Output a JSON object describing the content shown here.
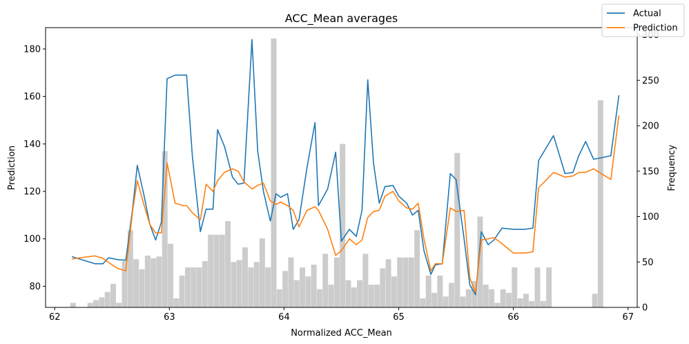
{
  "chart_data": {
    "type": "line",
    "title": "ACC_Mean averages",
    "xlabel": "Normalized ACC_Mean",
    "ylabel": "Prediction",
    "y2label": "Frequency",
    "xlim": [
      61.92,
      67.08
    ],
    "ylim": [
      71.1,
      189
    ],
    "y2lim": [
      0,
      308
    ],
    "x_ticks": [
      "62",
      "63",
      "64",
      "65",
      "66",
      "67"
    ],
    "x_tick_values": [
      62,
      63,
      64,
      65,
      66,
      67
    ],
    "y_ticks": [
      "80",
      "100",
      "120",
      "140",
      "160",
      "180"
    ],
    "y_tick_values": [
      80,
      100,
      120,
      140,
      160,
      180
    ],
    "y2_ticks": [
      "0",
      "50",
      "100",
      "150",
      "200",
      "250",
      "300"
    ],
    "y2_tick_values": [
      0,
      50,
      100,
      150,
      200,
      250,
      300
    ],
    "legend_position": "top-right",
    "grid": false,
    "series": [
      {
        "name": "Actual",
        "color": "#1f77b4",
        "points": [
          [
            62.15,
            92.5
          ],
          [
            62.25,
            91
          ],
          [
            62.35,
            89.5
          ],
          [
            62.42,
            89.5
          ],
          [
            62.47,
            92
          ],
          [
            62.55,
            91.2
          ],
          [
            62.62,
            91
          ],
          [
            62.68,
            113
          ],
          [
            62.72,
            131
          ],
          [
            62.78,
            118
          ],
          [
            62.83,
            106
          ],
          [
            62.88,
            99.5
          ],
          [
            62.93,
            107
          ],
          [
            62.98,
            167.5
          ],
          [
            63.05,
            169
          ],
          [
            63.12,
            169
          ],
          [
            63.15,
            169
          ],
          [
            63.2,
            135
          ],
          [
            63.27,
            103
          ],
          [
            63.32,
            112.5
          ],
          [
            63.38,
            112.5
          ],
          [
            63.42,
            146
          ],
          [
            63.48,
            139
          ],
          [
            63.55,
            126
          ],
          [
            63.6,
            123
          ],
          [
            63.65,
            123.5
          ],
          [
            63.72,
            184
          ],
          [
            63.77,
            137
          ],
          [
            63.82,
            120
          ],
          [
            63.88,
            107.5
          ],
          [
            63.93,
            119
          ],
          [
            63.97,
            117.5
          ],
          [
            64.03,
            119
          ],
          [
            64.08,
            104
          ],
          [
            64.13,
            108
          ],
          [
            64.2,
            130
          ],
          [
            64.27,
            149
          ],
          [
            64.3,
            114
          ],
          [
            64.38,
            121
          ],
          [
            64.45,
            136.5
          ],
          [
            64.5,
            99
          ],
          [
            64.57,
            104
          ],
          [
            64.63,
            101
          ],
          [
            64.68,
            112
          ],
          [
            64.73,
            167
          ],
          [
            64.78,
            132
          ],
          [
            64.83,
            115
          ],
          [
            64.88,
            122
          ],
          [
            64.95,
            122.5
          ],
          [
            65,
            118
          ],
          [
            65.07,
            115
          ],
          [
            65.12,
            110
          ],
          [
            65.17,
            112
          ],
          [
            65.22,
            95
          ],
          [
            65.28,
            85
          ],
          [
            65.32,
            89
          ],
          [
            65.38,
            89.5
          ],
          [
            65.45,
            127.5
          ],
          [
            65.5,
            125
          ],
          [
            65.57,
            100
          ],
          [
            65.62,
            80.5
          ],
          [
            65.67,
            76.5
          ],
          [
            65.72,
            103
          ],
          [
            65.78,
            97.5
          ],
          [
            65.83,
            99.5
          ],
          [
            65.9,
            104.5
          ],
          [
            66,
            104
          ],
          [
            66.1,
            104
          ],
          [
            66.17,
            104.5
          ],
          [
            66.22,
            133
          ],
          [
            66.35,
            143.5
          ],
          [
            66.45,
            127.5
          ],
          [
            66.52,
            128
          ],
          [
            66.57,
            135
          ],
          [
            66.63,
            141
          ],
          [
            66.7,
            133.5
          ],
          [
            66.85,
            135
          ],
          [
            66.92,
            160.5
          ]
        ]
      },
      {
        "name": "Prediction",
        "color": "#ff7f0e",
        "points": [
          [
            62.15,
            91.5
          ],
          [
            62.25,
            92.2
          ],
          [
            62.35,
            92.8
          ],
          [
            62.42,
            91.8
          ],
          [
            62.47,
            90
          ],
          [
            62.55,
            87.5
          ],
          [
            62.62,
            86.5
          ],
          [
            62.68,
            112
          ],
          [
            62.72,
            124.5
          ],
          [
            62.78,
            114
          ],
          [
            62.83,
            106
          ],
          [
            62.88,
            102.5
          ],
          [
            62.93,
            102.5
          ],
          [
            62.98,
            132
          ],
          [
            63.05,
            115
          ],
          [
            63.12,
            114
          ],
          [
            63.15,
            114
          ],
          [
            63.2,
            111
          ],
          [
            63.27,
            108
          ],
          [
            63.32,
            123
          ],
          [
            63.38,
            120
          ],
          [
            63.42,
            124.5
          ],
          [
            63.48,
            128
          ],
          [
            63.55,
            129.5
          ],
          [
            63.6,
            128.5
          ],
          [
            63.65,
            124
          ],
          [
            63.72,
            121
          ],
          [
            63.77,
            122.5
          ],
          [
            63.82,
            123.5
          ],
          [
            63.88,
            116
          ],
          [
            63.93,
            114.5
          ],
          [
            63.97,
            115.5
          ],
          [
            64.03,
            114
          ],
          [
            64.08,
            112
          ],
          [
            64.13,
            105
          ],
          [
            64.2,
            112
          ],
          [
            64.27,
            113.5
          ],
          [
            64.3,
            112
          ],
          [
            64.38,
            104
          ],
          [
            64.45,
            93
          ],
          [
            64.5,
            95
          ],
          [
            64.57,
            100
          ],
          [
            64.63,
            97.5
          ],
          [
            64.68,
            99.5
          ],
          [
            64.73,
            109
          ],
          [
            64.78,
            111.5
          ],
          [
            64.83,
            112
          ],
          [
            64.88,
            118
          ],
          [
            64.95,
            120
          ],
          [
            65,
            116
          ],
          [
            65.07,
            113
          ],
          [
            65.12,
            112.5
          ],
          [
            65.17,
            115
          ],
          [
            65.22,
            100
          ],
          [
            65.28,
            86.5
          ],
          [
            65.32,
            89.5
          ],
          [
            65.38,
            89.5
          ],
          [
            65.45,
            113
          ],
          [
            65.5,
            111.5
          ],
          [
            65.57,
            112
          ],
          [
            65.62,
            83.5
          ],
          [
            65.67,
            77.5
          ],
          [
            65.72,
            99.5
          ],
          [
            65.78,
            100
          ],
          [
            65.83,
            100.5
          ],
          [
            65.9,
            98
          ],
          [
            66,
            94
          ],
          [
            66.1,
            94
          ],
          [
            66.17,
            94.5
          ],
          [
            66.22,
            121.5
          ],
          [
            66.35,
            128
          ],
          [
            66.45,
            126
          ],
          [
            66.52,
            126.5
          ],
          [
            66.57,
            128
          ],
          [
            66.63,
            128
          ],
          [
            66.7,
            129.5
          ],
          [
            66.85,
            125
          ],
          [
            66.92,
            152
          ]
        ]
      }
    ],
    "histogram": {
      "name": "Frequency",
      "color": "#cccccc",
      "bin_width": 0.048,
      "bins": [
        [
          62.16,
          5
        ],
        [
          62.31,
          5
        ],
        [
          62.36,
          8
        ],
        [
          62.41,
          11
        ],
        [
          62.46,
          17
        ],
        [
          62.51,
          26
        ],
        [
          62.56,
          5
        ],
        [
          62.61,
          51
        ],
        [
          62.66,
          85
        ],
        [
          62.71,
          53
        ],
        [
          62.76,
          42
        ],
        [
          62.81,
          57
        ],
        [
          62.86,
          54
        ],
        [
          62.91,
          56
        ],
        [
          62.96,
          172
        ],
        [
          63.01,
          70
        ],
        [
          63.06,
          10
        ],
        [
          63.11,
          35
        ],
        [
          63.16,
          44
        ],
        [
          63.21,
          44
        ],
        [
          63.26,
          44
        ],
        [
          63.31,
          51
        ],
        [
          63.36,
          80
        ],
        [
          63.41,
          80
        ],
        [
          63.46,
          80
        ],
        [
          63.51,
          95
        ],
        [
          63.56,
          50
        ],
        [
          63.61,
          52
        ],
        [
          63.66,
          66
        ],
        [
          63.71,
          44
        ],
        [
          63.76,
          50
        ],
        [
          63.81,
          76
        ],
        [
          63.86,
          44
        ],
        [
          63.91,
          296
        ],
        [
          63.96,
          20
        ],
        [
          64.01,
          40
        ],
        [
          64.06,
          55
        ],
        [
          64.11,
          30
        ],
        [
          64.16,
          44
        ],
        [
          64.21,
          34
        ],
        [
          64.26,
          47
        ],
        [
          64.31,
          20
        ],
        [
          64.36,
          59
        ],
        [
          64.41,
          25
        ],
        [
          64.46,
          55
        ],
        [
          64.51,
          180
        ],
        [
          64.56,
          30
        ],
        [
          64.61,
          22
        ],
        [
          64.66,
          30
        ],
        [
          64.71,
          59
        ],
        [
          64.76,
          25
        ],
        [
          64.81,
          25
        ],
        [
          64.86,
          43
        ],
        [
          64.91,
          53
        ],
        [
          64.96,
          34
        ],
        [
          65.01,
          55
        ],
        [
          65.06,
          55
        ],
        [
          65.11,
          55
        ],
        [
          65.16,
          85
        ],
        [
          65.21,
          10
        ],
        [
          65.26,
          35
        ],
        [
          65.31,
          16
        ],
        [
          65.36,
          35
        ],
        [
          65.41,
          12
        ],
        [
          65.46,
          27
        ],
        [
          65.51,
          170
        ],
        [
          65.56,
          12
        ],
        [
          65.61,
          20
        ],
        [
          65.66,
          29
        ],
        [
          65.71,
          100
        ],
        [
          65.76,
          25
        ],
        [
          65.81,
          20
        ],
        [
          65.86,
          5
        ],
        [
          65.91,
          20
        ],
        [
          65.96,
          16
        ],
        [
          66.01,
          44
        ],
        [
          66.06,
          10
        ],
        [
          66.11,
          15
        ],
        [
          66.16,
          7
        ],
        [
          66.21,
          44
        ],
        [
          66.26,
          7
        ],
        [
          66.31,
          44
        ],
        [
          66.71,
          15
        ],
        [
          66.76,
          228
        ]
      ]
    }
  }
}
